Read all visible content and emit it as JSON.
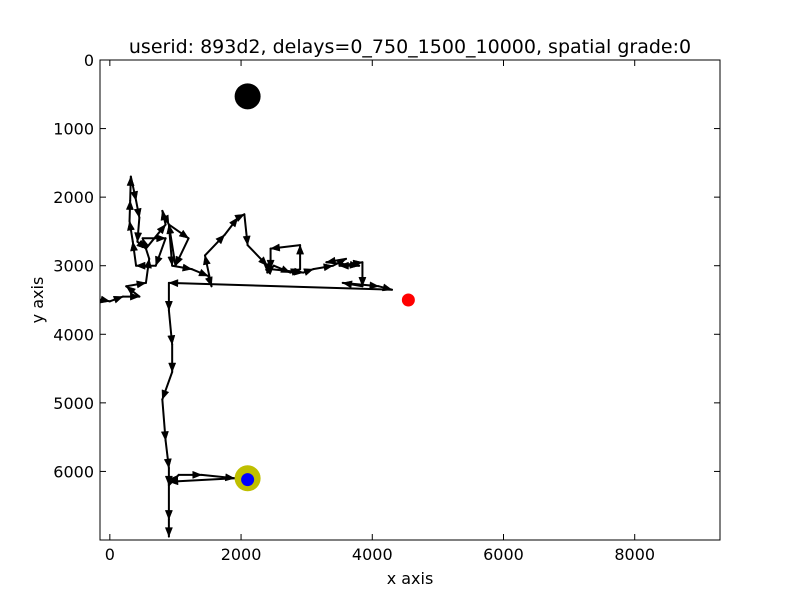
{
  "chart_data": {
    "type": "scatter",
    "title": "userid: 893d2, delays=0_750_1500_10000, spatial grade:0",
    "xlabel": "x axis",
    "ylabel": "y axis",
    "xlim": [
      -150,
      9300
    ],
    "ylim": [
      0,
      7000
    ],
    "y_inverted": true,
    "x_ticks": [
      0,
      2000,
      4000,
      6000,
      8000
    ],
    "y_ticks": [
      0,
      1000,
      2000,
      3000,
      4000,
      5000,
      6000
    ],
    "x_tick_labels": [
      "0",
      "2000",
      "4000",
      "6000",
      "8000"
    ],
    "y_tick_labels": [
      "0",
      "1000",
      "2000",
      "3000",
      "4000",
      "5000",
      "6000"
    ],
    "grid": false,
    "legend": "none",
    "colors": {
      "path": "#000000",
      "start_marker": "#ff0000",
      "end_ring": "#bfbf00",
      "end_marker": "#0000ff",
      "target_marker": "#000000"
    },
    "markers": [
      {
        "role": "target",
        "x": 2100,
        "y": 530,
        "size": "large",
        "color": "#000000"
      },
      {
        "role": "start",
        "x": 4550,
        "y": 3500,
        "size": "small",
        "color": "#ff0000"
      },
      {
        "role": "end-ring",
        "x": 2100,
        "y": 6100,
        "size": "large",
        "color": "#bfbf00"
      },
      {
        "role": "end",
        "x": 2100,
        "y": 6120,
        "size": "small",
        "color": "#0000ff"
      }
    ],
    "path_points": [
      [
        -150,
        3500
      ],
      [
        -100,
        3500
      ],
      [
        0,
        3520
      ],
      [
        200,
        3450
      ],
      [
        450,
        3450
      ],
      [
        250,
        3300
      ],
      [
        550,
        3250
      ],
      [
        600,
        2900
      ],
      [
        500,
        2600
      ],
      [
        850,
        2600
      ],
      [
        700,
        3000
      ],
      [
        400,
        3000
      ],
      [
        350,
        2650
      ],
      [
        300,
        2350
      ],
      [
        310,
        2050
      ],
      [
        320,
        1700
      ],
      [
        400,
        2050
      ],
      [
        450,
        2300
      ],
      [
        420,
        2650
      ],
      [
        550,
        2750
      ],
      [
        850,
        2400
      ],
      [
        800,
        2200
      ],
      [
        900,
        2400
      ],
      [
        1200,
        2600
      ],
      [
        1000,
        3000
      ],
      [
        900,
        2400
      ],
      [
        950,
        3000
      ],
      [
        1250,
        3050
      ],
      [
        1500,
        3150
      ],
      [
        1550,
        3300
      ],
      [
        1450,
        2850
      ],
      [
        1750,
        2550
      ],
      [
        1950,
        2300
      ],
      [
        2050,
        2250
      ],
      [
        2100,
        2700
      ],
      [
        2400,
        3000
      ],
      [
        2400,
        3100
      ],
      [
        2500,
        3000
      ],
      [
        2750,
        3100
      ],
      [
        2900,
        3050
      ],
      [
        2900,
        2700
      ],
      [
        2450,
        2750
      ],
      [
        2450,
        3050
      ],
      [
        2950,
        3100
      ],
      [
        3100,
        3050
      ],
      [
        3400,
        3000
      ],
      [
        3600,
        2900
      ],
      [
        3300,
        2950
      ],
      [
        3800,
        3000
      ],
      [
        3500,
        3000
      ],
      [
        3850,
        2950
      ],
      [
        3850,
        3300
      ],
      [
        3550,
        3250
      ],
      [
        4100,
        3300
      ],
      [
        4300,
        3350
      ],
      [
        900,
        3250
      ],
      [
        900,
        3650
      ],
      [
        950,
        4150
      ],
      [
        950,
        4550
      ],
      [
        800,
        4950
      ],
      [
        850,
        5550
      ],
      [
        900,
        5950
      ],
      [
        900,
        6200
      ],
      [
        1050,
        6050
      ],
      [
        1400,
        6050
      ],
      [
        1900,
        6100
      ],
      [
        900,
        6150
      ],
      [
        900,
        6700
      ],
      [
        900,
        6950
      ]
    ],
    "arrow_count": 64
  }
}
